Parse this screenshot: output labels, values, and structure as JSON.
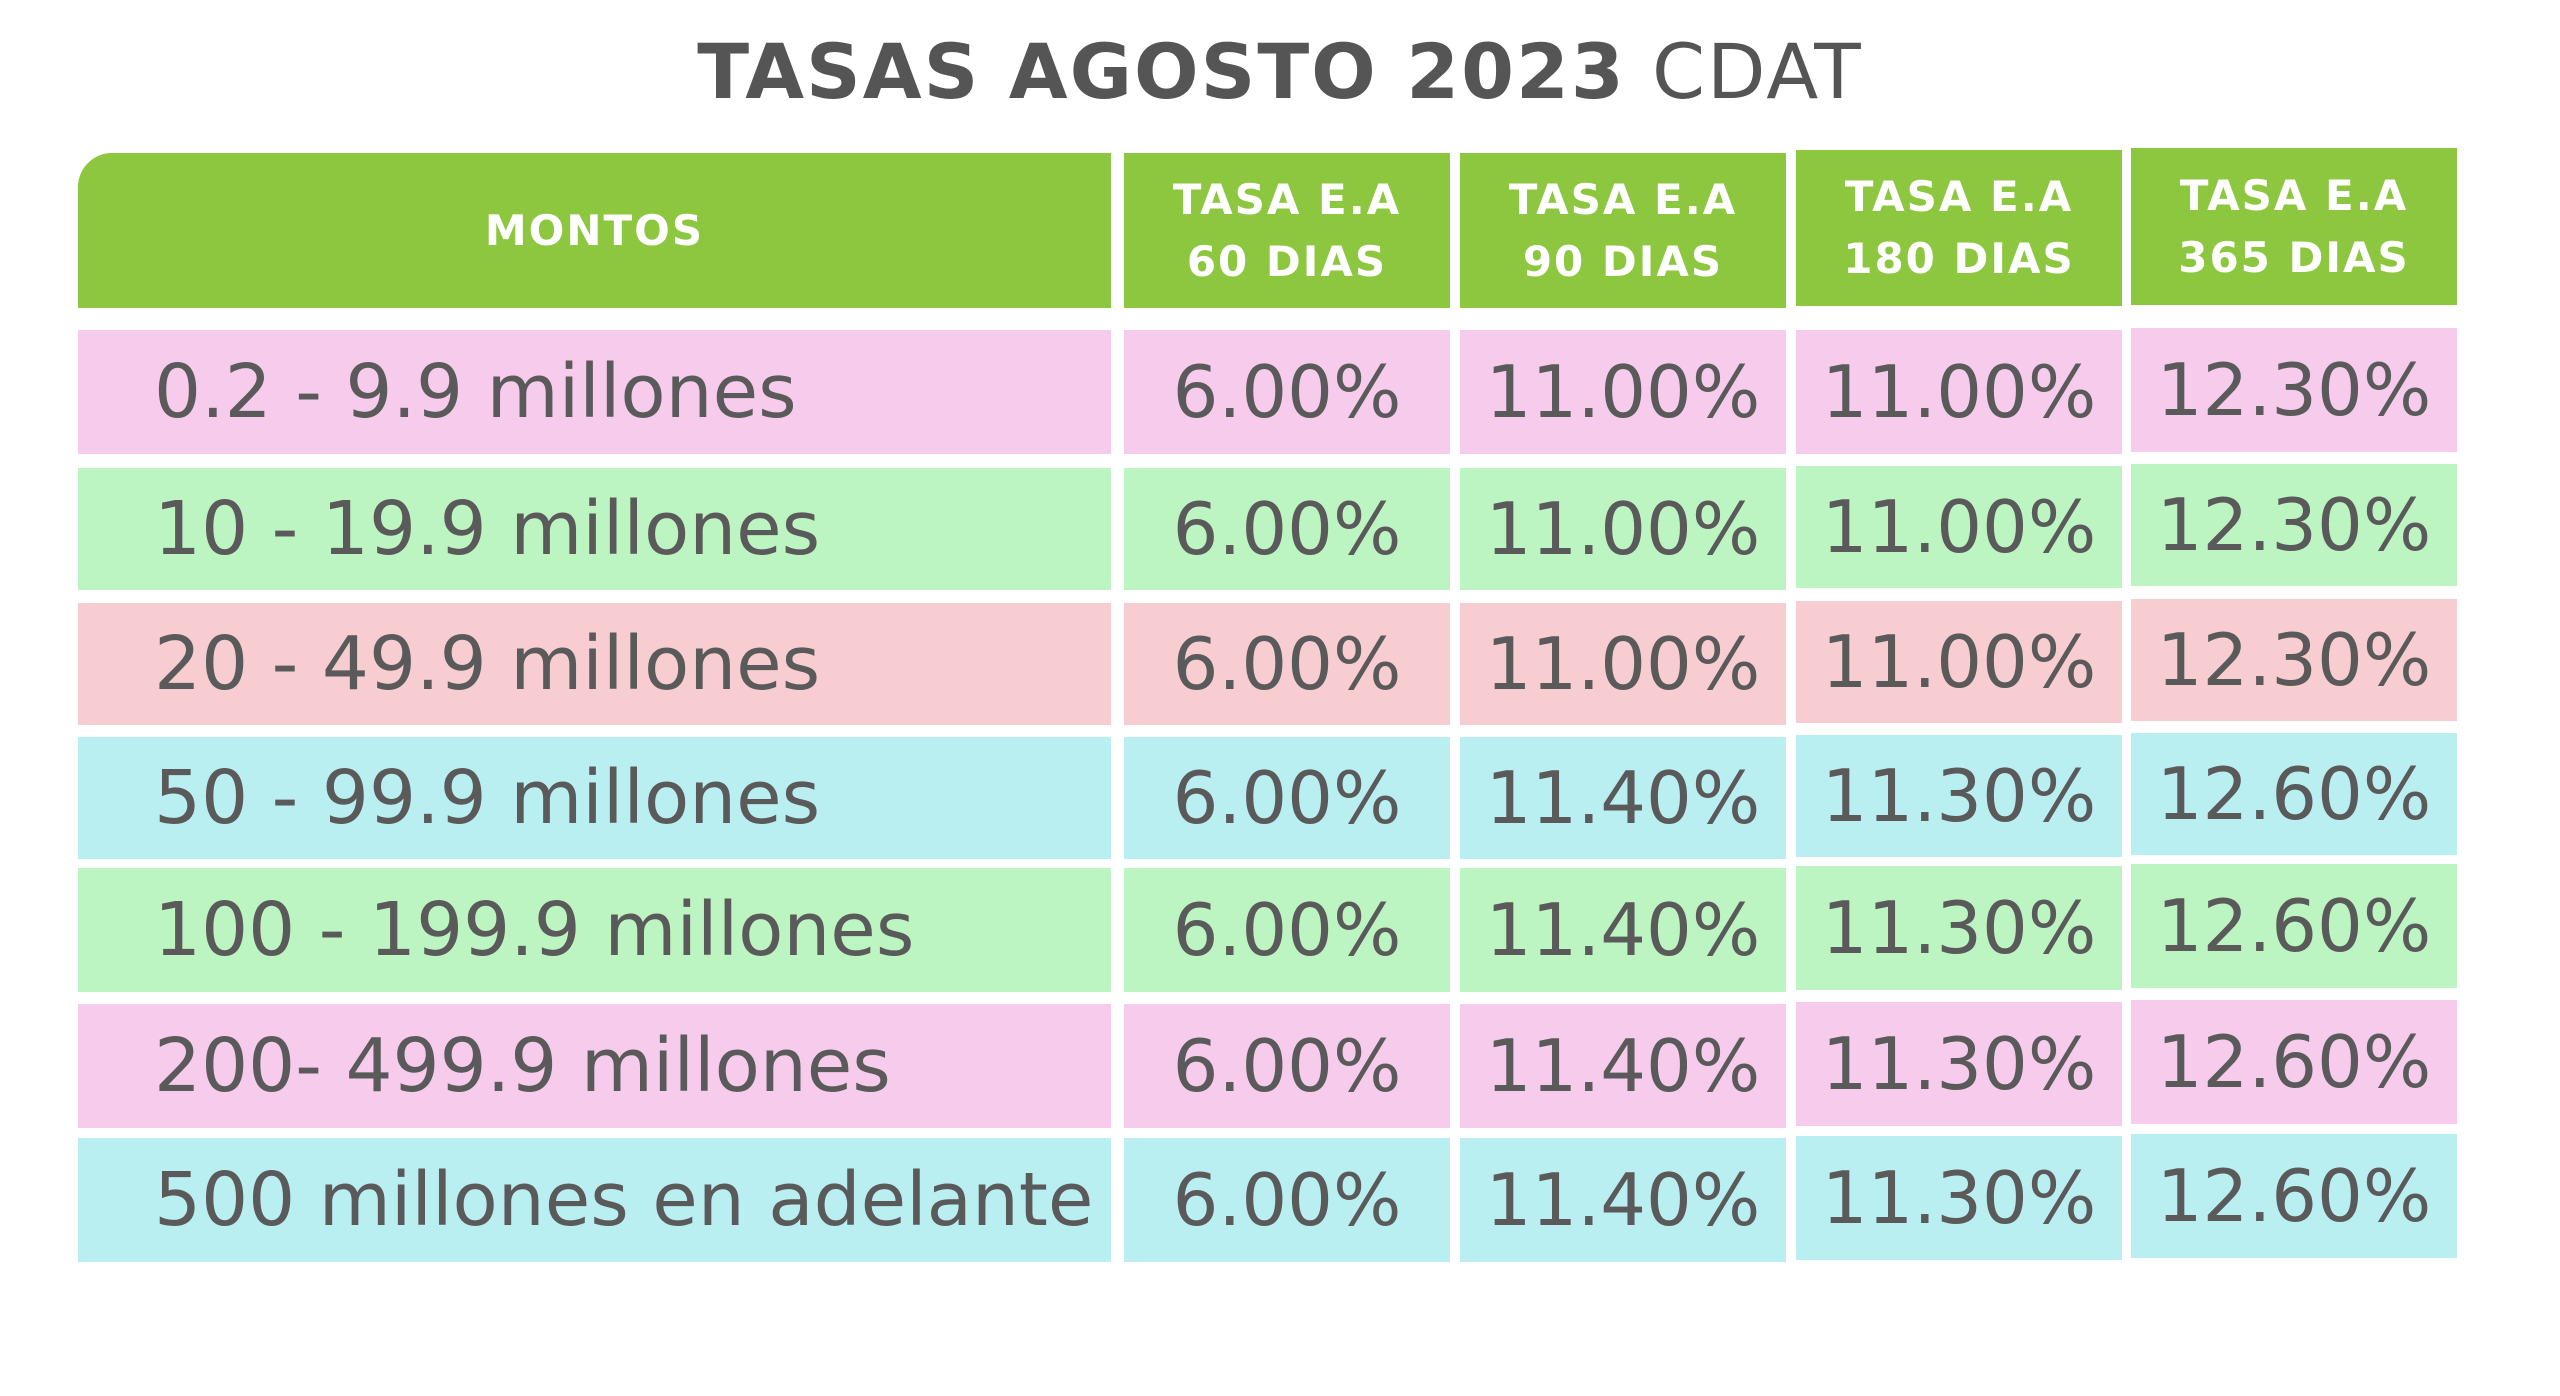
{
  "title": {
    "bold": "TASAS AGOSTO 2023",
    "light": "CDAT"
  },
  "header": {
    "montos": "MONTOS",
    "columns": [
      {
        "line1": "TASA E.A",
        "line2": "60 DIAS"
      },
      {
        "line1": "TASA E.A",
        "line2": "90 DIAS"
      },
      {
        "line1": "TASA E.A",
        "line2": "180 DIAS"
      },
      {
        "line1": "TASA E.A",
        "line2": "365 DIAS"
      }
    ]
  },
  "rows": [
    {
      "amount": "0.2 - 9.9 millones",
      "rates": [
        "6.00%",
        "11.00%",
        "11.00%",
        "12.30%"
      ],
      "color": "#f7cbec"
    },
    {
      "amount": "10 - 19.9 millones",
      "rates": [
        "6.00%",
        "11.00%",
        "11.00%",
        "12.30%"
      ],
      "color": "#bdf5c2"
    },
    {
      "amount": "20 - 49.9 millones",
      "rates": [
        "6.00%",
        "11.00%",
        "11.00%",
        "12.30%"
      ],
      "color": "#f8cdd2"
    },
    {
      "amount": "50 - 99.9 millones",
      "rates": [
        "6.00%",
        "11.40%",
        "11.30%",
        "12.60%"
      ],
      "color": "#baeff2"
    },
    {
      "amount": "100 - 199.9 millones",
      "rates": [
        "6.00%",
        "11.40%",
        "11.30%",
        "12.60%"
      ],
      "color": "#bdf5c2"
    },
    {
      "amount": "200- 499.9 millones",
      "rates": [
        "6.00%",
        "11.40%",
        "11.30%",
        "12.60%"
      ],
      "color": "#f7cbec"
    },
    {
      "amount": "500 millones en adelante",
      "rates": [
        "6.00%",
        "11.40%",
        "11.30%",
        "12.60%"
      ],
      "color": "#baeff2"
    }
  ],
  "colors": {
    "header_green": "#8dc63f",
    "text_gray": "#5a5a5a"
  }
}
